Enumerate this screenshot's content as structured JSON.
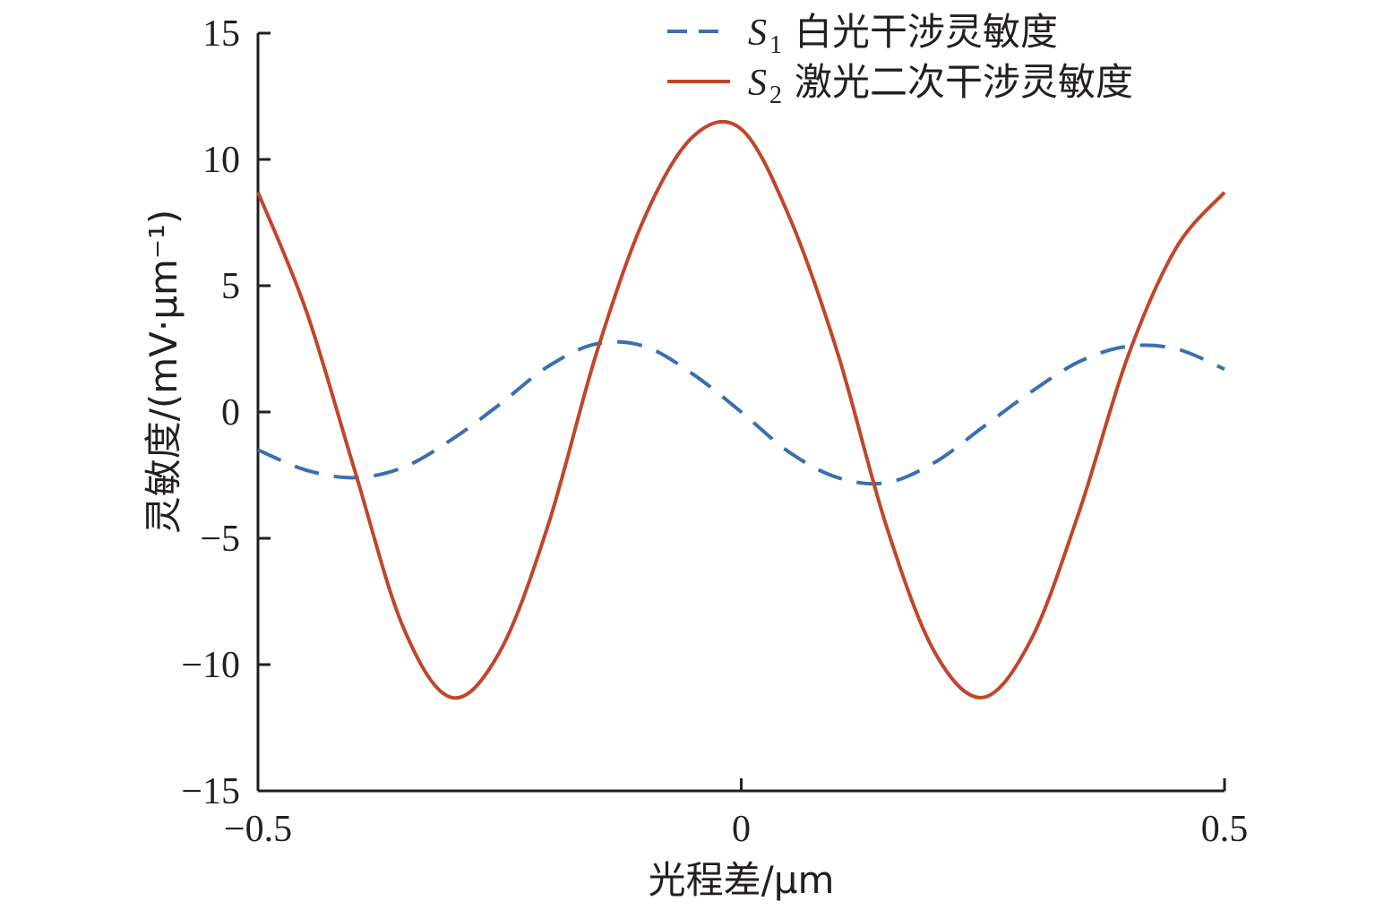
{
  "chart_data": {
    "type": "line",
    "xlabel": "光程差/μm",
    "ylabel": "灵敏度/(mV·μm⁻¹)",
    "xlim": [
      -0.5,
      0.5
    ],
    "ylim": [
      -15,
      15
    ],
    "x_ticks": [
      -0.5,
      0,
      0.5
    ],
    "x_tick_labels": [
      "−0.5",
      "0",
      "0.5"
    ],
    "y_ticks": [
      15,
      10,
      5,
      0,
      -5,
      -10,
      -15
    ],
    "y_tick_labels": [
      "15",
      "10",
      "5",
      "0",
      "−5",
      "−10",
      "−15"
    ],
    "grid": false,
    "legend_position": "top-right",
    "series": [
      {
        "symbol": "S",
        "subscript": "1",
        "name": "白光干涉灵敏度",
        "style": "dashed",
        "color": "#3a6fb0",
        "x": [
          -0.5,
          -0.45,
          -0.4,
          -0.35,
          -0.3,
          -0.25,
          -0.2,
          -0.15,
          -0.1,
          -0.05,
          0,
          0.05,
          0.1,
          0.15,
          0.2,
          0.25,
          0.3,
          0.35,
          0.4,
          0.45,
          0.5
        ],
        "values": [
          -1.5,
          -2.3,
          -2.6,
          -2.2,
          -1.1,
          0.3,
          1.8,
          2.7,
          2.6,
          1.5,
          0.0,
          -1.6,
          -2.6,
          -2.8,
          -2.0,
          -0.6,
          0.8,
          2.0,
          2.6,
          2.5,
          1.7
        ]
      },
      {
        "symbol": "S",
        "subscript": "2",
        "name": "激光二次干涉灵敏度",
        "style": "solid",
        "color": "#c0462a",
        "x": [
          -0.5,
          -0.45,
          -0.4,
          -0.35,
          -0.3,
          -0.25,
          -0.2,
          -0.15,
          -0.1,
          -0.05,
          0,
          0.05,
          0.1,
          0.15,
          0.2,
          0.25,
          0.3,
          0.35,
          0.4,
          0.45,
          0.5
        ],
        "values": [
          8.7,
          4.0,
          -2.3,
          -8.5,
          -11.3,
          -9.5,
          -4.5,
          2.3,
          7.7,
          10.9,
          11.2,
          7.7,
          2.3,
          -4.5,
          -9.5,
          -11.3,
          -9.0,
          -3.9,
          2.2,
          6.5,
          8.7
        ]
      }
    ]
  }
}
